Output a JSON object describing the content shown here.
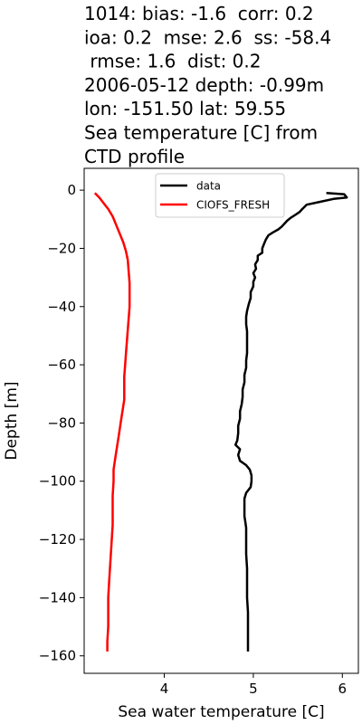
{
  "chart_data": {
    "type": "line",
    "title_lines": [
      "1014: bias: -1.6  corr: 0.2",
      "ioa: 0.2  mse: 2.6  ss: -58.4",
      " rmse: 1.6  dist: 0.2",
      "2006-05-12 depth: -0.99m",
      "lon: -151.50 lat: 59.55",
      "Sea temperature [C] from",
      "CTD profile"
    ],
    "xlabel": "Sea water temperature [C]",
    "ylabel": "Depth [m]",
    "xlim": [
      3.1,
      6.18
    ],
    "ylim": [
      -166,
      7.5
    ],
    "xticks": [
      4,
      5,
      6
    ],
    "yticks": [
      0,
      -20,
      -40,
      -60,
      -80,
      -100,
      -120,
      -140,
      -160
    ],
    "legend_position": "upper center",
    "series": [
      {
        "name": "data",
        "color": "#000000",
        "points": [
          [
            5.82,
            -0.99
          ],
          [
            6.02,
            -1.4
          ],
          [
            6.05,
            -2.5
          ],
          [
            5.9,
            -3.0
          ],
          [
            5.75,
            -4.0
          ],
          [
            5.6,
            -5.0
          ],
          [
            5.55,
            -6.5
          ],
          [
            5.52,
            -7.5
          ],
          [
            5.47,
            -8.5
          ],
          [
            5.42,
            -9.5
          ],
          [
            5.38,
            -10.5
          ],
          [
            5.35,
            -11.5
          ],
          [
            5.32,
            -12.5
          ],
          [
            5.28,
            -13.5
          ],
          [
            5.22,
            -14.5
          ],
          [
            5.17,
            -15.5
          ],
          [
            5.14,
            -17.0
          ],
          [
            5.12,
            -18.5
          ],
          [
            5.1,
            -20.0
          ],
          [
            5.1,
            -21.5
          ],
          [
            5.05,
            -22.5
          ],
          [
            5.05,
            -24.0
          ],
          [
            5.02,
            -25.5
          ],
          [
            5.03,
            -27.0
          ],
          [
            5.0,
            -28.5
          ],
          [
            5.02,
            -30.0
          ],
          [
            5.0,
            -31.5
          ],
          [
            5.0,
            -33.0
          ],
          [
            4.97,
            -35.0
          ],
          [
            4.97,
            -37.0
          ],
          [
            4.95,
            -39.0
          ],
          [
            4.93,
            -41.5
          ],
          [
            4.92,
            -43.5
          ],
          [
            4.92,
            -46.0
          ],
          [
            4.93,
            -48.5
          ],
          [
            4.93,
            -51.0
          ],
          [
            4.93,
            -53.5
          ],
          [
            4.93,
            -56.0
          ],
          [
            4.92,
            -58.5
          ],
          [
            4.92,
            -61.0
          ],
          [
            4.9,
            -63.5
          ],
          [
            4.9,
            -66.0
          ],
          [
            4.88,
            -68.5
          ],
          [
            4.88,
            -71.0
          ],
          [
            4.87,
            -73.5
          ],
          [
            4.85,
            -76.0
          ],
          [
            4.85,
            -78.5
          ],
          [
            4.83,
            -81.0
          ],
          [
            4.83,
            -83.5
          ],
          [
            4.82,
            -86.0
          ],
          [
            4.8,
            -87.5
          ],
          [
            4.85,
            -89.0
          ],
          [
            4.83,
            -91.0
          ],
          [
            4.85,
            -93.0
          ],
          [
            4.92,
            -94.5
          ],
          [
            4.96,
            -96.0
          ],
          [
            4.98,
            -98.0
          ],
          [
            4.98,
            -100.0
          ],
          [
            4.97,
            -102.0
          ],
          [
            4.92,
            -104.0
          ],
          [
            4.9,
            -106.0
          ],
          [
            4.9,
            -108.0
          ],
          [
            4.9,
            -110.0
          ],
          [
            4.9,
            -112.0
          ],
          [
            4.91,
            -114.0
          ],
          [
            4.92,
            -116.0
          ],
          [
            4.92,
            -120.0
          ],
          [
            4.92,
            -125.0
          ],
          [
            4.93,
            -130.0
          ],
          [
            4.93,
            -135.0
          ],
          [
            4.93,
            -140.0
          ],
          [
            4.94,
            -145.0
          ],
          [
            4.94,
            -150.0
          ],
          [
            4.94,
            -155.0
          ],
          [
            4.94,
            -158.5
          ]
        ]
      },
      {
        "name": "CIOFS_FRESH",
        "color": "#ff0000",
        "points": [
          [
            3.22,
            -0.99
          ],
          [
            3.27,
            -2.5
          ],
          [
            3.32,
            -4.5
          ],
          [
            3.37,
            -6.5
          ],
          [
            3.42,
            -9.0
          ],
          [
            3.46,
            -12.0
          ],
          [
            3.5,
            -15.0
          ],
          [
            3.54,
            -18.0
          ],
          [
            3.57,
            -21.0
          ],
          [
            3.59,
            -24.0
          ],
          [
            3.6,
            -28.0
          ],
          [
            3.61,
            -32.0
          ],
          [
            3.61,
            -36.0
          ],
          [
            3.61,
            -40.0
          ],
          [
            3.6,
            -44.0
          ],
          [
            3.59,
            -48.0
          ],
          [
            3.58,
            -52.0
          ],
          [
            3.57,
            -56.0
          ],
          [
            3.56,
            -60.0
          ],
          [
            3.55,
            -64.0
          ],
          [
            3.55,
            -68.0
          ],
          [
            3.55,
            -72.0
          ],
          [
            3.53,
            -76.0
          ],
          [
            3.51,
            -80.0
          ],
          [
            3.49,
            -84.0
          ],
          [
            3.47,
            -88.0
          ],
          [
            3.45,
            -92.0
          ],
          [
            3.43,
            -96.0
          ],
          [
            3.43,
            -100.0
          ],
          [
            3.42,
            -105.0
          ],
          [
            3.42,
            -110.0
          ],
          [
            3.42,
            -115.0
          ],
          [
            3.41,
            -120.0
          ],
          [
            3.4,
            -125.0
          ],
          [
            3.39,
            -130.0
          ],
          [
            3.38,
            -135.0
          ],
          [
            3.37,
            -140.0
          ],
          [
            3.37,
            -145.0
          ],
          [
            3.37,
            -150.0
          ],
          [
            3.36,
            -155.0
          ],
          [
            3.36,
            -158.5
          ]
        ]
      }
    ]
  }
}
